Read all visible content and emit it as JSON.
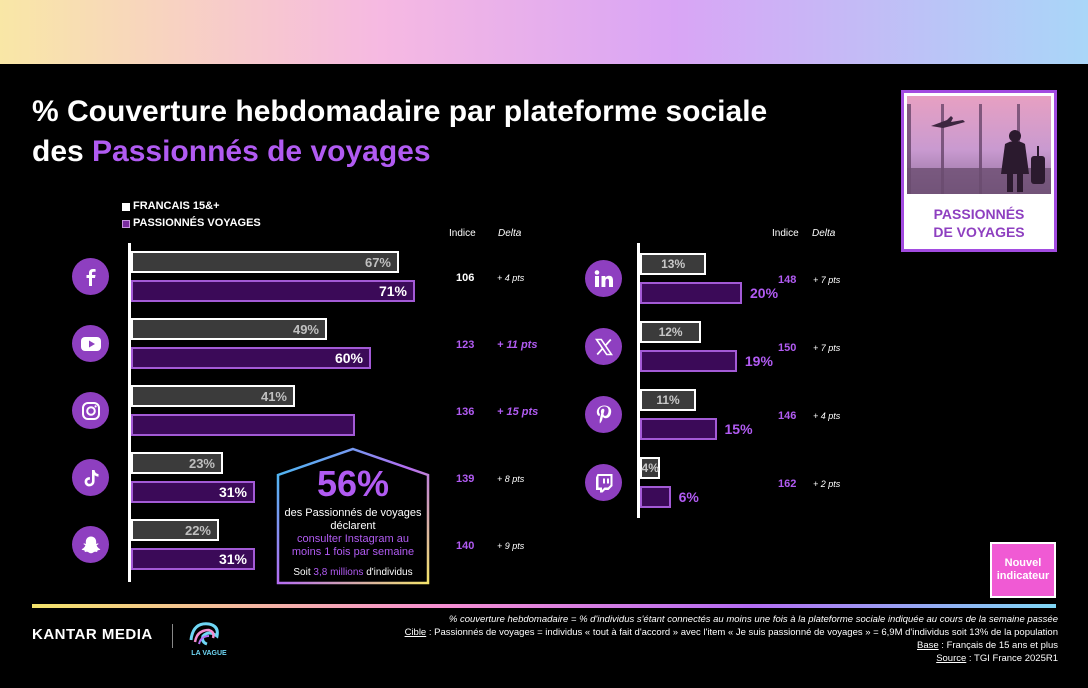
{
  "title": {
    "line1": "% Couverture hebdomadaire par plateforme sociale",
    "line2_prefix": "des ",
    "line2_accent": "Passionnés de voyages"
  },
  "legend": {
    "francais": "FRANCAIS 15&+",
    "passionnes": "PASSIONNÉS VOYAGES"
  },
  "column_headers": {
    "indice": "Indice",
    "delta": "Delta"
  },
  "colors": {
    "accent": "#b15bf2",
    "bar_fr": "#3b3b3b",
    "bar_pv": "#3b0a58",
    "icon_bg": "#8e3fc0"
  },
  "chart_data": {
    "type": "bar",
    "orientation": "horizontal",
    "series_names": [
      "FRANCAIS 15&+",
      "PASSIONNÉS VOYAGES"
    ],
    "platforms": [
      {
        "icon": "facebook-icon",
        "fr": 67,
        "fr_label": "67%",
        "pv": 71,
        "pv_label": "71%",
        "indice": "106",
        "delta": "+ 4 pts",
        "highlight": false
      },
      {
        "icon": "youtube-icon",
        "fr": 49,
        "fr_label": "49%",
        "pv": 60,
        "pv_label": "60%",
        "indice": "123",
        "delta": "+ 11 pts",
        "highlight": true
      },
      {
        "icon": "instagram-icon",
        "fr": 41,
        "fr_label": "41%",
        "pv": 56,
        "pv_label": "",
        "indice": "136",
        "delta": "+ 15 pts",
        "highlight": true
      },
      {
        "icon": "tiktok-icon",
        "fr": 23,
        "fr_label": "23%",
        "pv": 31,
        "pv_label": "31%",
        "indice": "139",
        "delta": "+ 8 pts",
        "highlight": false
      },
      {
        "icon": "snapchat-icon",
        "fr": 22,
        "fr_label": "22%",
        "pv": 31,
        "pv_label": "31%",
        "indice": "140",
        "delta": "+ 9 pts",
        "highlight": false
      },
      {
        "icon": "linkedin-icon",
        "fr": 13,
        "fr_label": "13%",
        "pv": 20,
        "pv_label": "20%",
        "indice": "148",
        "delta": "+ 7 pts",
        "highlight": false
      },
      {
        "icon": "x-icon",
        "fr": 12,
        "fr_label": "12%",
        "pv": 19,
        "pv_label": "19%",
        "indice": "150",
        "delta": "+ 7 pts",
        "highlight": false
      },
      {
        "icon": "pinterest-icon",
        "fr": 11,
        "fr_label": "11%",
        "pv": 15,
        "pv_label": "15%",
        "indice": "146",
        "delta": "+ 4 pts",
        "highlight": false
      },
      {
        "icon": "twitch-icon",
        "fr": 4,
        "fr_label": "4%",
        "pv": 6,
        "pv_label": "6%",
        "indice": "162",
        "delta": "+ 2 pts",
        "highlight": false
      }
    ]
  },
  "callout": {
    "big_value": "56%",
    "text1": "des Passionnés de voyages déclarent",
    "text2": "consulter Instagram au moins 1 fois par semaine",
    "text3_prefix": "Soit ",
    "text3_highlight": "3,8 millions",
    "text3_suffix": " d'individus"
  },
  "target_card": {
    "label_line1": "PASSIONNÉS",
    "label_line2": "DE VOYAGES"
  },
  "badge": {
    "line1": "Nouvel",
    "line2": "indicateur"
  },
  "footer": {
    "brand": "KANTAR MEDIA",
    "vague_logo": "LA VAGUE",
    "line1": "% couverture hebdomadaire = % d'individus s'étant connectés au moins une fois à la plateforme sociale indiquée au cours de la semaine passée",
    "line2_label": "Cible",
    "line2_text": " : Passionnés de voyages = individus « tout à fait d'accord » avec l'item « Je suis passionné de voyages » = 6,9M d'individus soit 13% de la population",
    "line3_label": "Base",
    "line3_text": " : Français de 15 ans et plus",
    "line4_label": "Source",
    "line4_text": " : TGI France 2025R1"
  }
}
